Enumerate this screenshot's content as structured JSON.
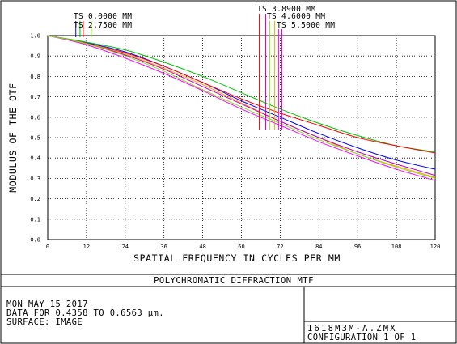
{
  "chart_data": {
    "type": "line",
    "title": "POLYCHROMATIC DIFFRACTION MTF",
    "xlabel": "SPATIAL FREQUENCY IN CYCLES PER MM",
    "ylabel": "MODULUS OF THE OTF",
    "xlim": [
      0,
      120
    ],
    "ylim": [
      0,
      1
    ],
    "x_ticks": [
      "0",
      "12",
      "24",
      "36",
      "48",
      "60",
      "72",
      "84",
      "96",
      "108",
      "120"
    ],
    "y_ticks": [
      "0.0",
      "0.1",
      "0.2",
      "0.3",
      "0.4",
      "0.5",
      "0.6",
      "0.7",
      "0.8",
      "0.9",
      "1.0"
    ],
    "grid": true,
    "x": [
      0,
      12,
      24,
      36,
      48,
      60,
      72,
      84,
      96,
      108,
      120
    ],
    "series": [
      {
        "color": "#0000ff",
        "values": [
          1.0,
          0.965,
          0.92,
          0.85,
          0.77,
          0.68,
          0.6,
          0.52,
          0.45,
          0.39,
          0.345
        ]
      },
      {
        "color": "#00c000",
        "values": [
          1.0,
          0.968,
          0.93,
          0.87,
          0.8,
          0.72,
          0.64,
          0.57,
          0.51,
          0.46,
          0.43
        ]
      },
      {
        "color": "#ff0000",
        "values": [
          1.0,
          0.962,
          0.915,
          0.85,
          0.77,
          0.69,
          0.62,
          0.56,
          0.5,
          0.46,
          0.425
        ]
      },
      {
        "color": "#ffa000",
        "values": [
          1.0,
          0.962,
          0.91,
          0.84,
          0.76,
          0.67,
          0.58,
          0.5,
          0.42,
          0.36,
          0.305
        ]
      },
      {
        "color": "#c000c0",
        "values": [
          1.0,
          0.96,
          0.905,
          0.835,
          0.75,
          0.665,
          0.58,
          0.5,
          0.43,
          0.37,
          0.315
        ]
      },
      {
        "color": "#ff00ff",
        "values": [
          1.0,
          0.955,
          0.89,
          0.815,
          0.73,
          0.64,
          0.56,
          0.48,
          0.41,
          0.345,
          0.29
        ]
      },
      {
        "color": "#80e020",
        "values": [
          1.0,
          0.96,
          0.9,
          0.825,
          0.735,
          0.65,
          0.57,
          0.49,
          0.42,
          0.355,
          0.3
        ]
      }
    ],
    "field_markers": [
      {
        "label": "TS 0.0000 MM",
        "lines": [
          {
            "x": 8.7,
            "color": "#0000ff"
          },
          {
            "x": 10.0,
            "color": "#00c000"
          }
        ]
      },
      {
        "label": "TS 2.7500 MM",
        "lines": [
          {
            "x": 11.0,
            "color": "#ff0000"
          },
          {
            "x": 13.5,
            "color": "#80e020"
          }
        ]
      },
      {
        "label": "TS 3.8900 MM",
        "lines": [
          {
            "x": 65.5,
            "color": "#ff0000"
          },
          {
            "x": 67.5,
            "color": "#c000c0"
          }
        ]
      },
      {
        "label": "TS 4.6000 MM",
        "lines": [
          {
            "x": 68.8,
            "color": "#80e020"
          },
          {
            "x": 70.3,
            "color": "#ffa000"
          }
        ]
      },
      {
        "label": "TS 5.5000 MM",
        "lines": [
          {
            "x": 71.5,
            "color": "#ff00ff"
          },
          {
            "x": 72.5,
            "color": "#c000c0"
          }
        ]
      }
    ]
  },
  "info": {
    "date": "MON MAY 15 2017",
    "data_for": "DATA FOR 0.4358 TO 0.6563 µm.",
    "surface": "SURFACE: IMAGE",
    "file": "1618M3M-A.ZMX",
    "configuration": "CONFIGURATION 1 OF 1"
  }
}
